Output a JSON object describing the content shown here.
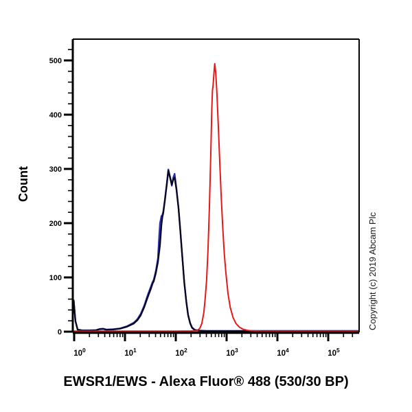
{
  "title": "EWSR1/EWS - Alexa Fluor® 488 (530/30 BP)",
  "ylabel": "Count",
  "copyright": "Copyright (c) 2019 Abcam Plc",
  "colors": {
    "red_curve": "#e81717",
    "blue_curve": "#2b2bb4",
    "black_curve": "#07071f",
    "axis": "#000000",
    "text": "#000000",
    "copyright_text": "#1a1a1a"
  },
  "chart_data": {
    "type": "line",
    "subtype": "flow-cytometry-histogram",
    "title": "EWSR1/EWS - Alexa Fluor® 488 (530/30 BP)",
    "xlabel": "EWSR1/EWS - Alexa Fluor® 488 (530/30 BP)",
    "ylabel": "Count",
    "x_scale": "log10",
    "x_range": [
      0.94,
      400000
    ],
    "y_range": [
      0,
      540
    ],
    "x_tick_exponent_base": "10",
    "x_ticks_exponents": [
      0,
      1,
      2,
      3,
      4,
      5
    ],
    "y_ticks_major": [
      0,
      100,
      200,
      300,
      400,
      500
    ],
    "y_minor_step": 20,
    "grid": false,
    "legend": "none",
    "series": [
      {
        "name": "blue-curve",
        "color_key": "blue_curve",
        "points": [
          [
            0.94,
            27
          ],
          [
            0.98,
            58
          ],
          [
            1.06,
            20
          ],
          [
            1.17,
            4
          ],
          [
            1.45,
            2.5
          ],
          [
            1.98,
            2.5
          ],
          [
            2.71,
            3
          ],
          [
            3.16,
            5
          ],
          [
            3.7,
            5.5
          ],
          [
            4.32,
            4
          ],
          [
            5.89,
            4.5
          ],
          [
            8.03,
            6
          ],
          [
            10.9,
            10
          ],
          [
            14.9,
            16.5
          ],
          [
            17.5,
            23
          ],
          [
            20.4,
            33
          ],
          [
            23.9,
            48
          ],
          [
            27.9,
            67
          ],
          [
            32.6,
            84
          ],
          [
            34.7,
            91
          ],
          [
            36.9,
            96
          ],
          [
            40.5,
            112
          ],
          [
            44.5,
            135
          ],
          [
            47,
            175
          ],
          [
            48.9,
            200
          ],
          [
            52.1,
            213
          ],
          [
            54.4,
            215
          ],
          [
            56.8,
            222
          ],
          [
            60.9,
            243
          ],
          [
            66.9,
            275
          ],
          [
            71.3,
            299
          ],
          [
            78.4,
            283
          ],
          [
            83.5,
            269
          ],
          [
            89,
            284
          ],
          [
            94.8,
            291
          ],
          [
            103,
            264
          ],
          [
            113,
            229
          ],
          [
            123,
            186
          ],
          [
            135,
            136
          ],
          [
            147,
            91
          ],
          [
            161,
            56
          ],
          [
            175,
            31
          ],
          [
            192,
            16
          ],
          [
            209,
            8
          ],
          [
            236,
            3.5
          ],
          [
            289,
            2
          ],
          [
            394,
            1.4
          ],
          [
            400000,
            1.4
          ]
        ]
      },
      {
        "name": "black-curve",
        "color_key": "black_curve",
        "points": [
          [
            0.94,
            26
          ],
          [
            0.98,
            57
          ],
          [
            1.06,
            19
          ],
          [
            1.17,
            3.5
          ],
          [
            1.45,
            2
          ],
          [
            1.98,
            2
          ],
          [
            2.71,
            2.5
          ],
          [
            3.16,
            4.5
          ],
          [
            3.7,
            5
          ],
          [
            4.32,
            3.5
          ],
          [
            5.89,
            4
          ],
          [
            8.03,
            5.5
          ],
          [
            10.9,
            9
          ],
          [
            14.9,
            15
          ],
          [
            17.5,
            21
          ],
          [
            20.4,
            30
          ],
          [
            23.9,
            45
          ],
          [
            27.9,
            63
          ],
          [
            32.6,
            80
          ],
          [
            34.7,
            88
          ],
          [
            36.9,
            93
          ],
          [
            40.5,
            108
          ],
          [
            44.5,
            128
          ],
          [
            48.9,
            160
          ],
          [
            52.1,
            196
          ],
          [
            54.4,
            211
          ],
          [
            56.8,
            219
          ],
          [
            60.9,
            241
          ],
          [
            66.9,
            273
          ],
          [
            71.3,
            297
          ],
          [
            78.4,
            281
          ],
          [
            83.5,
            271
          ],
          [
            89,
            280
          ],
          [
            94.8,
            284
          ],
          [
            103,
            262
          ],
          [
            113,
            228
          ],
          [
            123,
            185
          ],
          [
            135,
            135
          ],
          [
            147,
            90
          ],
          [
            161,
            55
          ],
          [
            175,
            30
          ],
          [
            192,
            15
          ],
          [
            209,
            7
          ],
          [
            236,
            3
          ],
          [
            289,
            1.8
          ],
          [
            394,
            1.2
          ],
          [
            400000,
            1.2
          ]
        ]
      },
      {
        "name": "red-curve",
        "color_key": "red_curve",
        "points": [
          [
            0.94,
            1
          ],
          [
            10,
            1
          ],
          [
            100,
            1
          ],
          [
            200,
            1.2
          ],
          [
            262,
            2
          ],
          [
            297,
            6
          ],
          [
            325,
            15
          ],
          [
            356,
            35
          ],
          [
            378,
            60
          ],
          [
            404,
            95
          ],
          [
            430,
            150
          ],
          [
            459,
            230
          ],
          [
            489,
            330
          ],
          [
            512,
            412
          ],
          [
            527,
            445
          ],
          [
            543,
            455
          ],
          [
            568,
            480
          ],
          [
            584,
            494
          ],
          [
            610,
            478
          ],
          [
            644,
            440
          ],
          [
            686,
            380
          ],
          [
            735,
            310
          ],
          [
            787,
            245
          ],
          [
            842,
            190
          ],
          [
            899,
            145
          ],
          [
            964,
            110
          ],
          [
            1066,
            70
          ],
          [
            1178,
            45
          ],
          [
            1340,
            26
          ],
          [
            1530,
            15
          ],
          [
            1800,
            8
          ],
          [
            2110,
            4.5
          ],
          [
            2545,
            2.5
          ],
          [
            3170,
            1.5
          ],
          [
            5050,
            1
          ],
          [
            400000,
            1
          ]
        ]
      }
    ]
  }
}
